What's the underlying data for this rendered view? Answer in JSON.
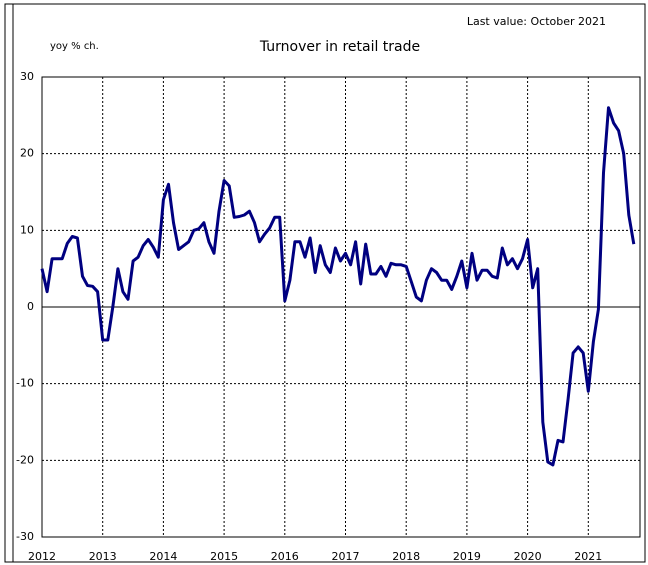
{
  "chart_data": {
    "type": "line",
    "title": "Turnover in retail trade",
    "y_label": "yoy % ch.",
    "annotation": "Last value: October 2021",
    "categories": [
      "2012",
      null,
      null,
      null,
      null,
      null,
      null,
      null,
      null,
      null,
      null,
      null,
      "2013",
      null,
      null,
      null,
      null,
      null,
      null,
      null,
      null,
      null,
      null,
      null,
      "2014",
      null,
      null,
      null,
      null,
      null,
      null,
      null,
      null,
      null,
      null,
      null,
      "2015",
      null,
      null,
      null,
      null,
      null,
      null,
      null,
      null,
      null,
      null,
      null,
      "2016",
      null,
      null,
      null,
      null,
      null,
      null,
      null,
      null,
      null,
      null,
      null,
      "2017",
      null,
      null,
      null,
      null,
      null,
      null,
      null,
      null,
      null,
      null,
      null,
      "2018",
      null,
      null,
      null,
      null,
      null,
      null,
      null,
      null,
      null,
      null,
      null,
      "2019",
      null,
      null,
      null,
      null,
      null,
      null,
      null,
      null,
      null,
      null,
      null,
      "2020",
      null,
      null,
      null,
      null,
      null,
      null,
      null,
      null,
      null,
      null,
      null,
      "2021",
      null,
      null,
      null,
      null,
      null,
      null,
      null,
      null,
      null
    ],
    "series": [
      {
        "color": "#000080",
        "values": [
          5,
          2,
          6.3,
          6.3,
          6.3,
          8.3,
          9.2,
          9,
          4,
          2.8,
          2.7,
          2,
          -4.3,
          -4.3,
          0,
          5,
          2,
          1,
          6,
          6.5,
          8,
          8.8,
          7.8,
          6.5,
          14,
          16,
          11,
          7.5,
          8,
          8.5,
          10,
          10.2,
          11,
          8.5,
          7,
          12.5,
          16.5,
          15.8,
          11.7,
          11.8,
          12,
          12.5,
          11,
          8.5,
          9.5,
          10.3,
          11.7,
          11.7,
          0.8,
          3.5,
          8.5,
          8.5,
          6.5,
          9,
          4.5,
          8,
          5.5,
          4.5,
          7.7,
          6,
          7,
          5.5,
          8.5,
          3,
          8.2,
          4.3,
          4.3,
          5.3,
          4,
          5.7,
          5.5,
          5.5,
          5.3,
          3.3,
          1.3,
          0.8,
          3.5,
          5,
          4.5,
          3.5,
          3.5,
          2.3,
          4,
          6,
          2.5,
          7,
          3.5,
          4.8,
          4.8,
          4,
          3.8,
          7.7,
          5.5,
          6.3,
          5,
          6.3,
          8.8,
          2.5,
          5,
          -15,
          -20.2,
          -20.6,
          -17.4,
          -17.6,
          -12,
          -6,
          -5.2,
          -6,
          -11,
          -4.5,
          -0.3,
          17.5,
          26,
          24,
          23,
          20,
          12,
          8.2
        ]
      }
    ],
    "ylim": [
      -30,
      30
    ],
    "yticks": [
      -30,
      -20,
      -10,
      0,
      10,
      20,
      30
    ],
    "grid": true
  }
}
